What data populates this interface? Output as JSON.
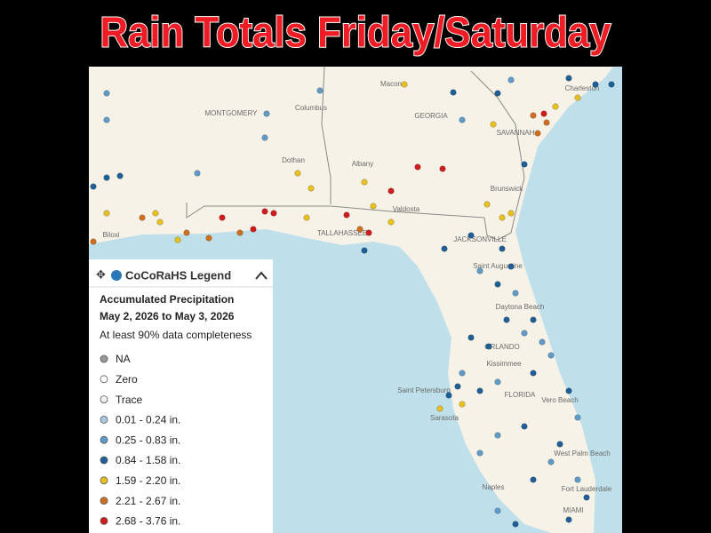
{
  "title": "Rain Totals Friday/Saturday",
  "legend": {
    "header": "CoCoRaHS Legend",
    "heading": "Accumulated Precipitation",
    "dates": "May 2, 2026 to May 3, 2026",
    "note": "At least 90% data completeness",
    "items": [
      {
        "label": "NA",
        "color": "#9a9a9a"
      },
      {
        "label": "Zero",
        "color": "#ffffff"
      },
      {
        "label": "Trace",
        "color": "#eef3f8"
      },
      {
        "label": "0.01 - 0.24 in.",
        "color": "#a9c8e0"
      },
      {
        "label": "0.25 - 0.83 in.",
        "color": "#5f9bc8"
      },
      {
        "label": "0.84 - 1.58 in.",
        "color": "#1f5f98"
      },
      {
        "label": "1.59 - 2.20 in.",
        "color": "#e8c020"
      },
      {
        "label": "2.21 - 2.67 in.",
        "color": "#d0701e"
      },
      {
        "label": "2.68 - 3.76 in.",
        "color": "#d01c1c"
      }
    ]
  },
  "places": [
    "MONTGOMERY",
    "Columbus",
    "Macon",
    "GEORGIA",
    "SAVANNAH",
    "Albany",
    "Dothan",
    "Valdosta",
    "Brunswick",
    "TALLAHASSEE",
    "JACKSONVILLE",
    "Saint Augustine",
    "Daytona Beach",
    "ORLANDO",
    "Kissimmee",
    "Saint Petersburg",
    "FLORIDA",
    "Vero Beach",
    "Sarasota",
    "West Palm Beach",
    "Naples",
    "Fort Lauderdale",
    "MIAMI",
    "Biloxi",
    "Charleston"
  ]
}
